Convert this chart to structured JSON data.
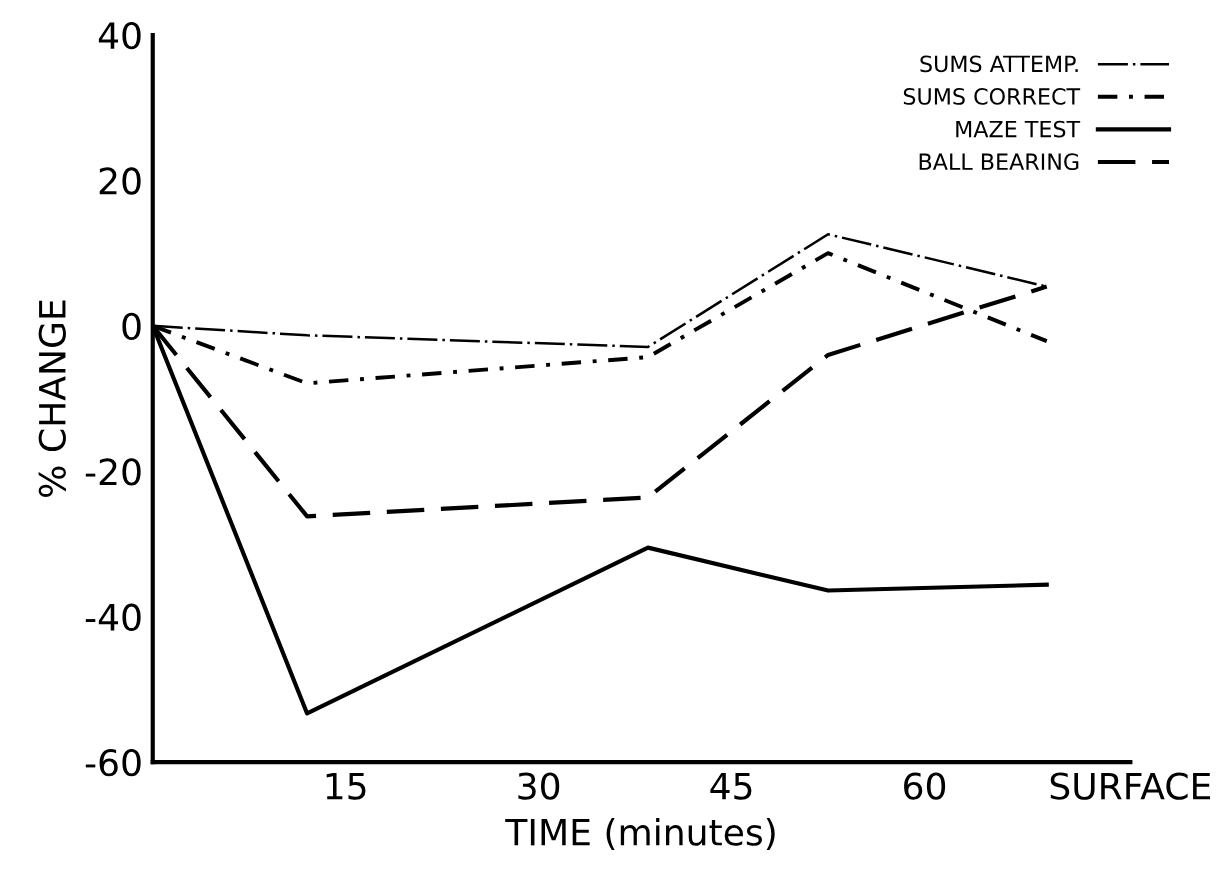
{
  "chart_data": {
    "type": "line",
    "xlabel": "TIME (minutes)",
    "ylabel": "% CHANGE",
    "x": [
      0,
      12,
      38.5,
      52.5,
      69.5
    ],
    "xlim": [
      0,
      76
    ],
    "xticks": [
      15,
      30,
      45,
      60,
      {
        "value": 76,
        "label": "SURFACE"
      }
    ],
    "ylim": [
      -60,
      40
    ],
    "yticks": [
      -60,
      -40,
      -20,
      0,
      20,
      40
    ],
    "grid": false,
    "legend": "top right",
    "marker": "none",
    "series": [
      {
        "name": "SUMS ATTEMP.",
        "color": "#000000",
        "line_style": "dashdot",
        "values": [
          0,
          -1.3,
          -2.9,
          12.6,
          5.4
        ]
      },
      {
        "name": "SUMS CORRECT",
        "color": "#000000",
        "line_style": "dashdot",
        "values": [
          0,
          -7.9,
          -4.3,
          10,
          -2.1
        ]
      },
      {
        "name": "MAZE TEST",
        "color": "#000000",
        "line_style": "solid",
        "values": [
          0,
          -53.3,
          -30.5,
          -36.4,
          -35.6
        ]
      },
      {
        "name": "BALL BEARING",
        "color": "#000000",
        "line_style": "dashed",
        "values": [
          0,
          -26.2,
          -23.6,
          -4,
          5.4
        ]
      }
    ]
  }
}
